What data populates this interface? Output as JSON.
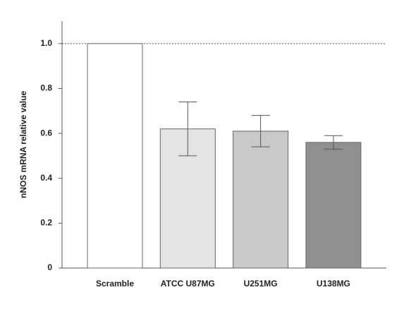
{
  "chart_data": {
    "type": "bar",
    "y_label": "nNOS mRNA relative value",
    "categories": [
      "Scramble",
      "ATCC U87MG",
      "U251MG",
      "U138MG"
    ],
    "values": [
      1.0,
      0.62,
      0.61,
      0.56
    ],
    "errors": [
      null,
      0.12,
      0.07,
      0.03
    ],
    "colors": [
      "#ffffff",
      "#e3e3e3",
      "#c9c9c9",
      "#8f8f8f"
    ],
    "ylim": [
      0,
      1.1
    ],
    "yticks": [
      0,
      {
        "value": 0.2,
        "label": "0.2"
      },
      {
        "value": 0.4,
        "label": "0.4"
      },
      {
        "value": 0.6,
        "label": "0.6"
      },
      {
        "value": 0.8,
        "label": "0.8"
      },
      {
        "value": 1.0,
        "label": "1.0"
      }
    ],
    "reference_line": 1
  }
}
